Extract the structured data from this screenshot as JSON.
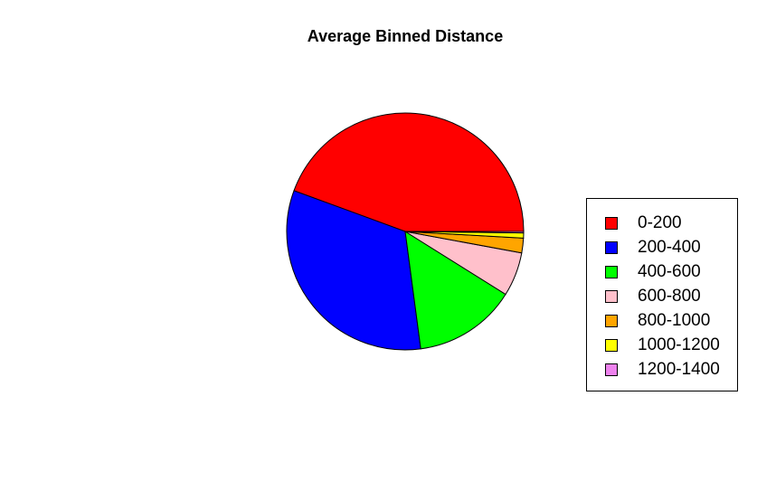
{
  "chart_data": {
    "type": "pie",
    "title": "Average Binned Distance",
    "labels": [
      "0-200",
      "200-400",
      "400-600",
      "600-800",
      "800-1000",
      "1000-1200",
      "1200-1400"
    ],
    "values": [
      44.4,
      32.7,
      14.0,
      6.0,
      2.0,
      0.7,
      0.2
    ],
    "colors": [
      "#ff0000",
      "#0000ff",
      "#00ff00",
      "#ffc0cb",
      "#ffa500",
      "#ffff00",
      "#ee82ee"
    ],
    "start_angle_deg": 0,
    "direction": "counterclockwise",
    "legend_position": "right"
  }
}
